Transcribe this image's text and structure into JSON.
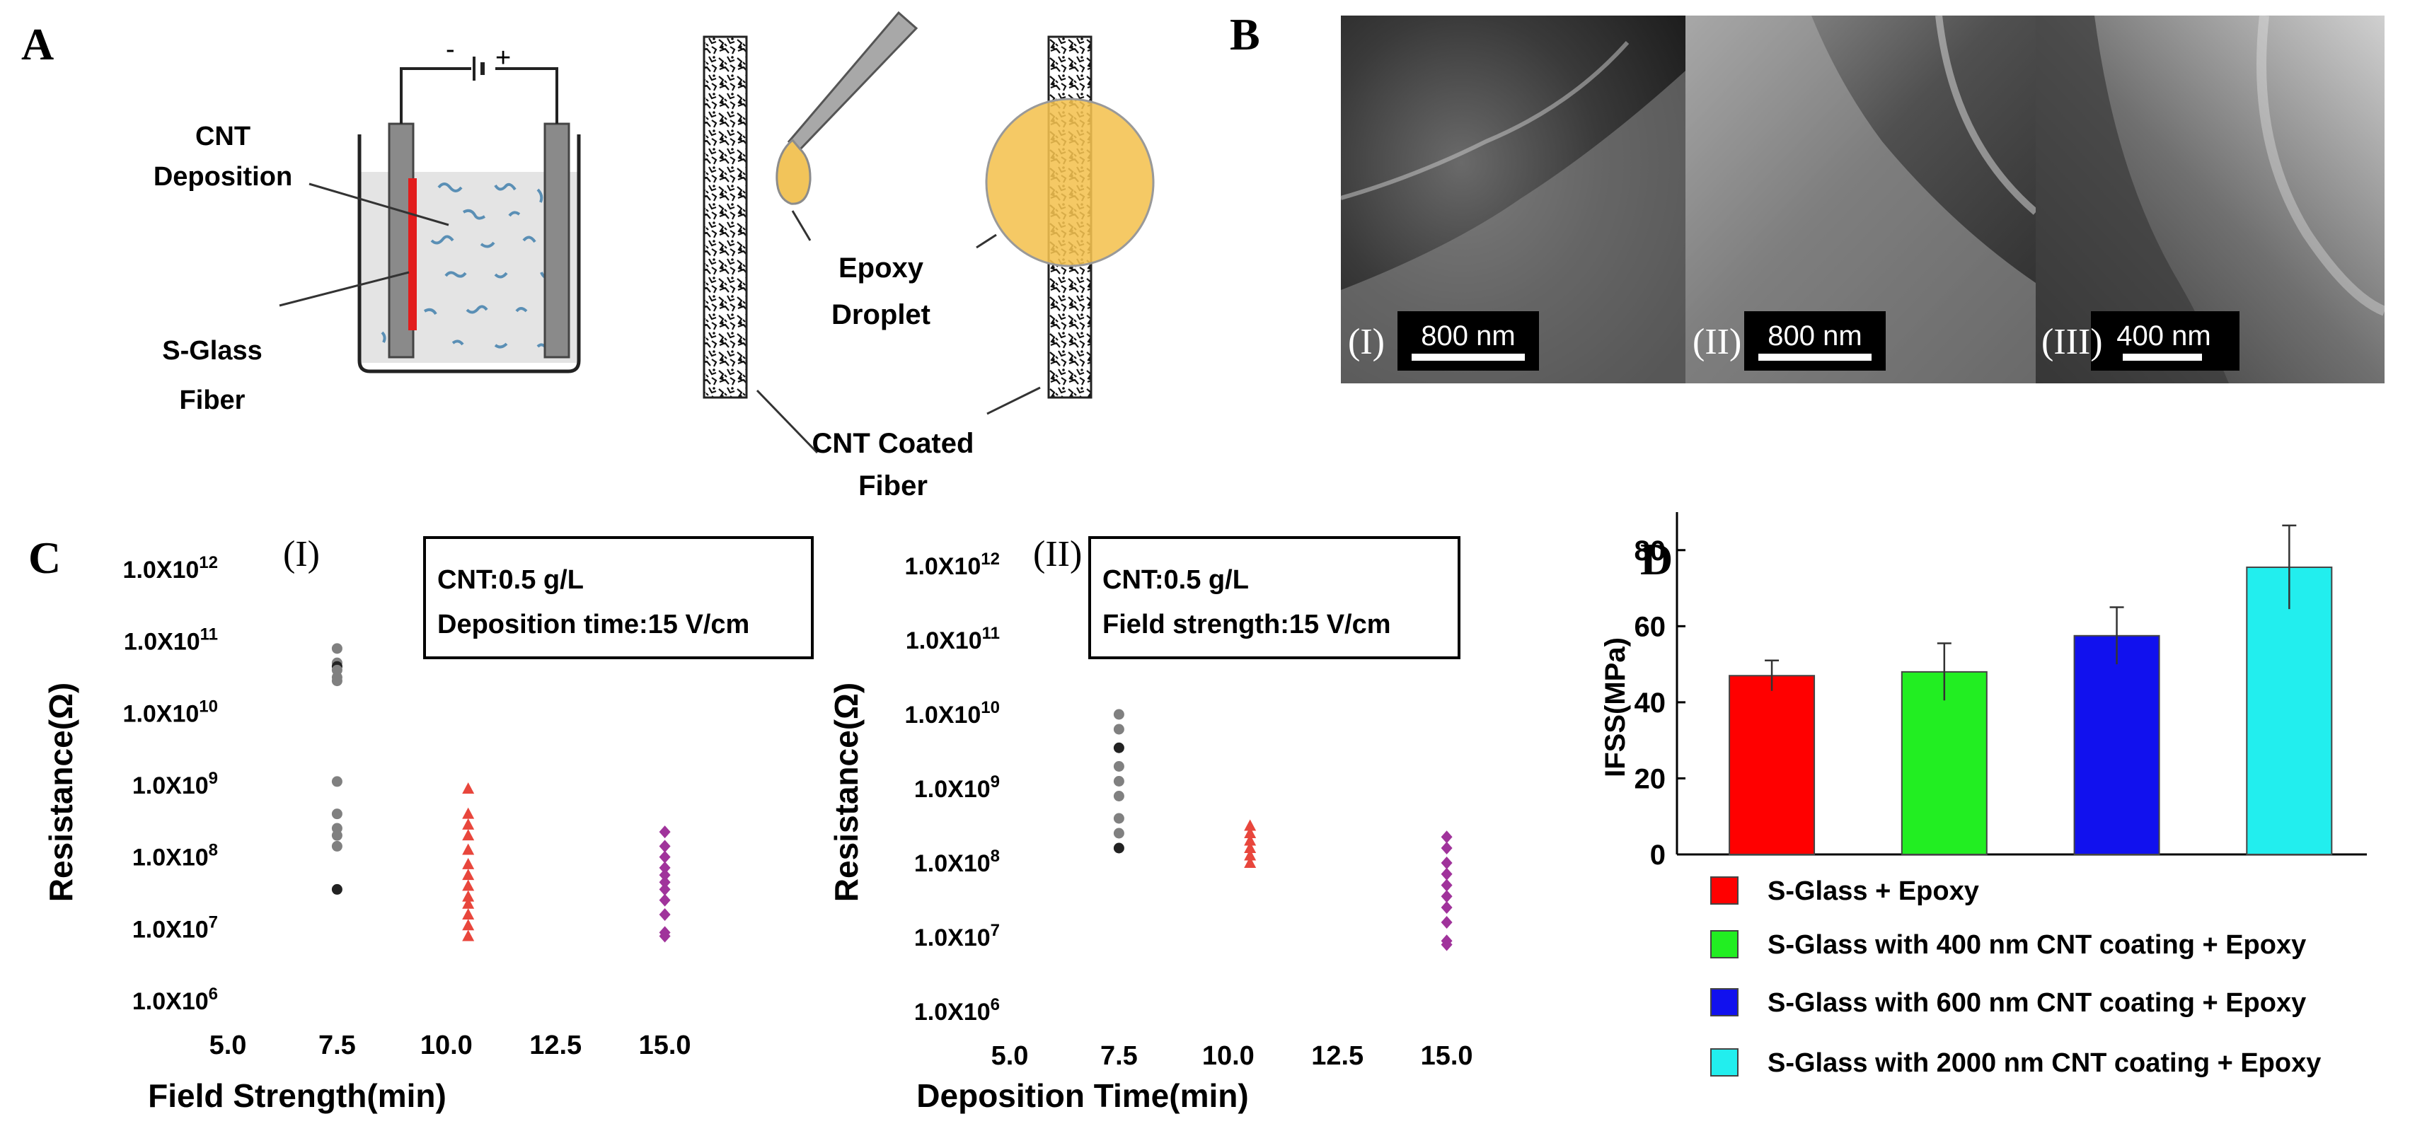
{
  "panels": {
    "A": {
      "letter": "A",
      "battery_minus": "-",
      "battery_plus": "+",
      "label_cnt_deposition": [
        "CNT",
        "Deposition"
      ],
      "label_sglass_fiber": [
        "S-Glass",
        "Fiber"
      ],
      "label_epoxy_droplet": [
        "Epoxy",
        "Droplet"
      ],
      "label_cnt_coated_fiber": [
        "CNT Coated",
        "Fiber"
      ]
    },
    "B": {
      "letter": "B",
      "images": [
        {
          "roman": "(I)",
          "scale": "800 nm"
        },
        {
          "roman": "(II)",
          "scale": "800 nm"
        },
        {
          "roman": "(III)",
          "scale": "400 nm"
        }
      ]
    },
    "C": {
      "letter": "C"
    },
    "D": {
      "letter": "D"
    }
  },
  "chart_data": [
    {
      "type": "scatter",
      "panel": "C(I)",
      "roman": "(I)",
      "info": [
        "CNT:0.5 g/L",
        "Deposition time:15 V/cm"
      ],
      "xlabel": "Field Strength(min)",
      "ylabel": "Resistance(Ω)",
      "xticks": [
        "5.0",
        "7.5",
        "10.0",
        "12.5",
        "15.0"
      ],
      "xlim": [
        5.0,
        17.5
      ],
      "ylim_log10": [
        6,
        12
      ],
      "ytick_labels": [
        {
          "mant": "1.0X10",
          "exp": "6"
        },
        {
          "mant": "1.0X10",
          "exp": "7"
        },
        {
          "mant": "1.0X10",
          "exp": "8"
        },
        {
          "mant": "1.0X10",
          "exp": "9"
        },
        {
          "mant": "1.0X10",
          "exp": "10"
        },
        {
          "mant": "1.0X10",
          "exp": "11"
        },
        {
          "mant": "1.0X10",
          "exp": "12"
        }
      ],
      "series": [
        {
          "name": "7.5",
          "marker": "circle",
          "color": "#808080",
          "x": 7.5,
          "y_log10": [
            10.9,
            10.7,
            10.65,
            10.6,
            10.5,
            10.45,
            9.05,
            8.6,
            8.4,
            8.3,
            8.15,
            7.55
          ]
        },
        {
          "name": "10.5",
          "marker": "triangle",
          "color": "#e8463c",
          "x": 10.5,
          "y_log10": [
            8.95,
            8.6,
            8.45,
            8.3,
            8.1,
            7.9,
            7.75,
            7.6,
            7.45,
            7.35,
            7.2,
            7.05,
            6.9
          ]
        },
        {
          "name": "15",
          "marker": "diamond",
          "color": "#a0339b",
          "x": 15.0,
          "y_log10": [
            8.35,
            8.15,
            8.0,
            7.85,
            7.75,
            7.65,
            7.55,
            7.4,
            7.2,
            6.95,
            6.9
          ]
        }
      ]
    },
    {
      "type": "scatter",
      "panel": "C(II)",
      "roman": "(II)",
      "info": [
        "CNT:0.5 g/L",
        "Field strength:15 V/cm"
      ],
      "xlabel": "Deposition Time(min)",
      "ylabel": "Resistance(Ω)",
      "xticks": [
        "5.0",
        "7.5",
        "10.0",
        "12.5",
        "15.0"
      ],
      "xlim": [
        5.0,
        17.5
      ],
      "ylim_log10": [
        6,
        12
      ],
      "ytick_labels": [
        {
          "mant": "1.0X10",
          "exp": "6"
        },
        {
          "mant": "1.0X10",
          "exp": "7"
        },
        {
          "mant": "1.0X10",
          "exp": "8"
        },
        {
          "mant": "1.0X10",
          "exp": "9"
        },
        {
          "mant": "1.0X10",
          "exp": "10"
        },
        {
          "mant": "1.0X10",
          "exp": "11"
        },
        {
          "mant": "1.0X10",
          "exp": "12"
        }
      ],
      "series": [
        {
          "name": "7.5",
          "marker": "circle",
          "color": "#808080",
          "x": 7.5,
          "y_log10": [
            10.0,
            9.8,
            9.55,
            9.3,
            9.1,
            8.9,
            8.6,
            8.4,
            8.2
          ]
        },
        {
          "name": "10.5",
          "marker": "triangle",
          "color": "#e8463c",
          "x": 10.5,
          "y_log10": [
            8.5,
            8.4,
            8.3,
            8.2,
            8.1,
            8.0
          ]
        },
        {
          "name": "15",
          "marker": "diamond",
          "color": "#a0339b",
          "x": 15.0,
          "y_log10": [
            8.35,
            8.2,
            8.0,
            7.85,
            7.7,
            7.55,
            7.4,
            7.2,
            6.95,
            6.9
          ]
        }
      ]
    },
    {
      "type": "bar",
      "panel": "D",
      "ylabel": "IFSS(MPa)",
      "ylim": [
        0,
        90
      ],
      "yticks": [
        "0",
        "20",
        "40",
        "60",
        "80"
      ],
      "categories": [
        "S-Glass + Epoxy",
        "S-Glass with 400 nm CNT coating + Epoxy",
        "S-Glass with 600 nm CNT coating + Epoxy",
        "S-Glass with 2000 nm CNT coating + Epoxy"
      ],
      "values": [
        47,
        48,
        57.5,
        75.5
      ],
      "errors": [
        4,
        7.5,
        7.5,
        11
      ],
      "colors": [
        "#ff0000",
        "#22ee22",
        "#1111ee",
        "#22eeee"
      ]
    }
  ]
}
